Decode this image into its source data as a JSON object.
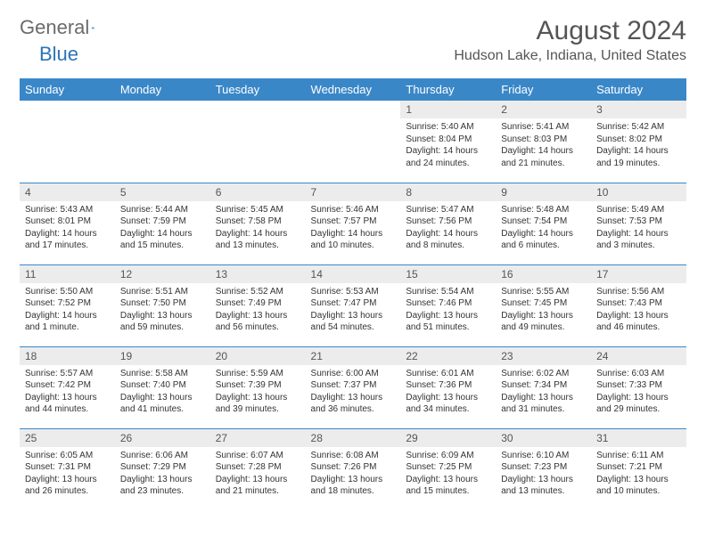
{
  "logo": {
    "text1": "General",
    "text2": "Blue"
  },
  "title": "August 2024",
  "location": "Hudson Lake, Indiana, United States",
  "colors": {
    "header_bg": "#3a87c8",
    "header_text": "#ffffff",
    "daynum_bg": "#ececec",
    "rule": "#3a87c8",
    "text": "#333333",
    "logo_gray": "#6b6b6b",
    "logo_blue": "#2d73b8"
  },
  "fonts": {
    "title_pt": 30,
    "location_pt": 16,
    "dayhead_pt": 13,
    "daynum_pt": 12,
    "body_pt": 10
  },
  "dayHeaders": [
    "Sunday",
    "Monday",
    "Tuesday",
    "Wednesday",
    "Thursday",
    "Friday",
    "Saturday"
  ],
  "weeks": [
    [
      null,
      null,
      null,
      null,
      {
        "n": "1",
        "sr": "5:40 AM",
        "ss": "8:04 PM",
        "dl": "14 hours and 24 minutes."
      },
      {
        "n": "2",
        "sr": "5:41 AM",
        "ss": "8:03 PM",
        "dl": "14 hours and 21 minutes."
      },
      {
        "n": "3",
        "sr": "5:42 AM",
        "ss": "8:02 PM",
        "dl": "14 hours and 19 minutes."
      }
    ],
    [
      {
        "n": "4",
        "sr": "5:43 AM",
        "ss": "8:01 PM",
        "dl": "14 hours and 17 minutes."
      },
      {
        "n": "5",
        "sr": "5:44 AM",
        "ss": "7:59 PM",
        "dl": "14 hours and 15 minutes."
      },
      {
        "n": "6",
        "sr": "5:45 AM",
        "ss": "7:58 PM",
        "dl": "14 hours and 13 minutes."
      },
      {
        "n": "7",
        "sr": "5:46 AM",
        "ss": "7:57 PM",
        "dl": "14 hours and 10 minutes."
      },
      {
        "n": "8",
        "sr": "5:47 AM",
        "ss": "7:56 PM",
        "dl": "14 hours and 8 minutes."
      },
      {
        "n": "9",
        "sr": "5:48 AM",
        "ss": "7:54 PM",
        "dl": "14 hours and 6 minutes."
      },
      {
        "n": "10",
        "sr": "5:49 AM",
        "ss": "7:53 PM",
        "dl": "14 hours and 3 minutes."
      }
    ],
    [
      {
        "n": "11",
        "sr": "5:50 AM",
        "ss": "7:52 PM",
        "dl": "14 hours and 1 minute."
      },
      {
        "n": "12",
        "sr": "5:51 AM",
        "ss": "7:50 PM",
        "dl": "13 hours and 59 minutes."
      },
      {
        "n": "13",
        "sr": "5:52 AM",
        "ss": "7:49 PM",
        "dl": "13 hours and 56 minutes."
      },
      {
        "n": "14",
        "sr": "5:53 AM",
        "ss": "7:47 PM",
        "dl": "13 hours and 54 minutes."
      },
      {
        "n": "15",
        "sr": "5:54 AM",
        "ss": "7:46 PM",
        "dl": "13 hours and 51 minutes."
      },
      {
        "n": "16",
        "sr": "5:55 AM",
        "ss": "7:45 PM",
        "dl": "13 hours and 49 minutes."
      },
      {
        "n": "17",
        "sr": "5:56 AM",
        "ss": "7:43 PM",
        "dl": "13 hours and 46 minutes."
      }
    ],
    [
      {
        "n": "18",
        "sr": "5:57 AM",
        "ss": "7:42 PM",
        "dl": "13 hours and 44 minutes."
      },
      {
        "n": "19",
        "sr": "5:58 AM",
        "ss": "7:40 PM",
        "dl": "13 hours and 41 minutes."
      },
      {
        "n": "20",
        "sr": "5:59 AM",
        "ss": "7:39 PM",
        "dl": "13 hours and 39 minutes."
      },
      {
        "n": "21",
        "sr": "6:00 AM",
        "ss": "7:37 PM",
        "dl": "13 hours and 36 minutes."
      },
      {
        "n": "22",
        "sr": "6:01 AM",
        "ss": "7:36 PM",
        "dl": "13 hours and 34 minutes."
      },
      {
        "n": "23",
        "sr": "6:02 AM",
        "ss": "7:34 PM",
        "dl": "13 hours and 31 minutes."
      },
      {
        "n": "24",
        "sr": "6:03 AM",
        "ss": "7:33 PM",
        "dl": "13 hours and 29 minutes."
      }
    ],
    [
      {
        "n": "25",
        "sr": "6:05 AM",
        "ss": "7:31 PM",
        "dl": "13 hours and 26 minutes."
      },
      {
        "n": "26",
        "sr": "6:06 AM",
        "ss": "7:29 PM",
        "dl": "13 hours and 23 minutes."
      },
      {
        "n": "27",
        "sr": "6:07 AM",
        "ss": "7:28 PM",
        "dl": "13 hours and 21 minutes."
      },
      {
        "n": "28",
        "sr": "6:08 AM",
        "ss": "7:26 PM",
        "dl": "13 hours and 18 minutes."
      },
      {
        "n": "29",
        "sr": "6:09 AM",
        "ss": "7:25 PM",
        "dl": "13 hours and 15 minutes."
      },
      {
        "n": "30",
        "sr": "6:10 AM",
        "ss": "7:23 PM",
        "dl": "13 hours and 13 minutes."
      },
      {
        "n": "31",
        "sr": "6:11 AM",
        "ss": "7:21 PM",
        "dl": "13 hours and 10 minutes."
      }
    ]
  ],
  "labels": {
    "sunrise": "Sunrise:",
    "sunset": "Sunset:",
    "daylight": "Daylight:"
  }
}
